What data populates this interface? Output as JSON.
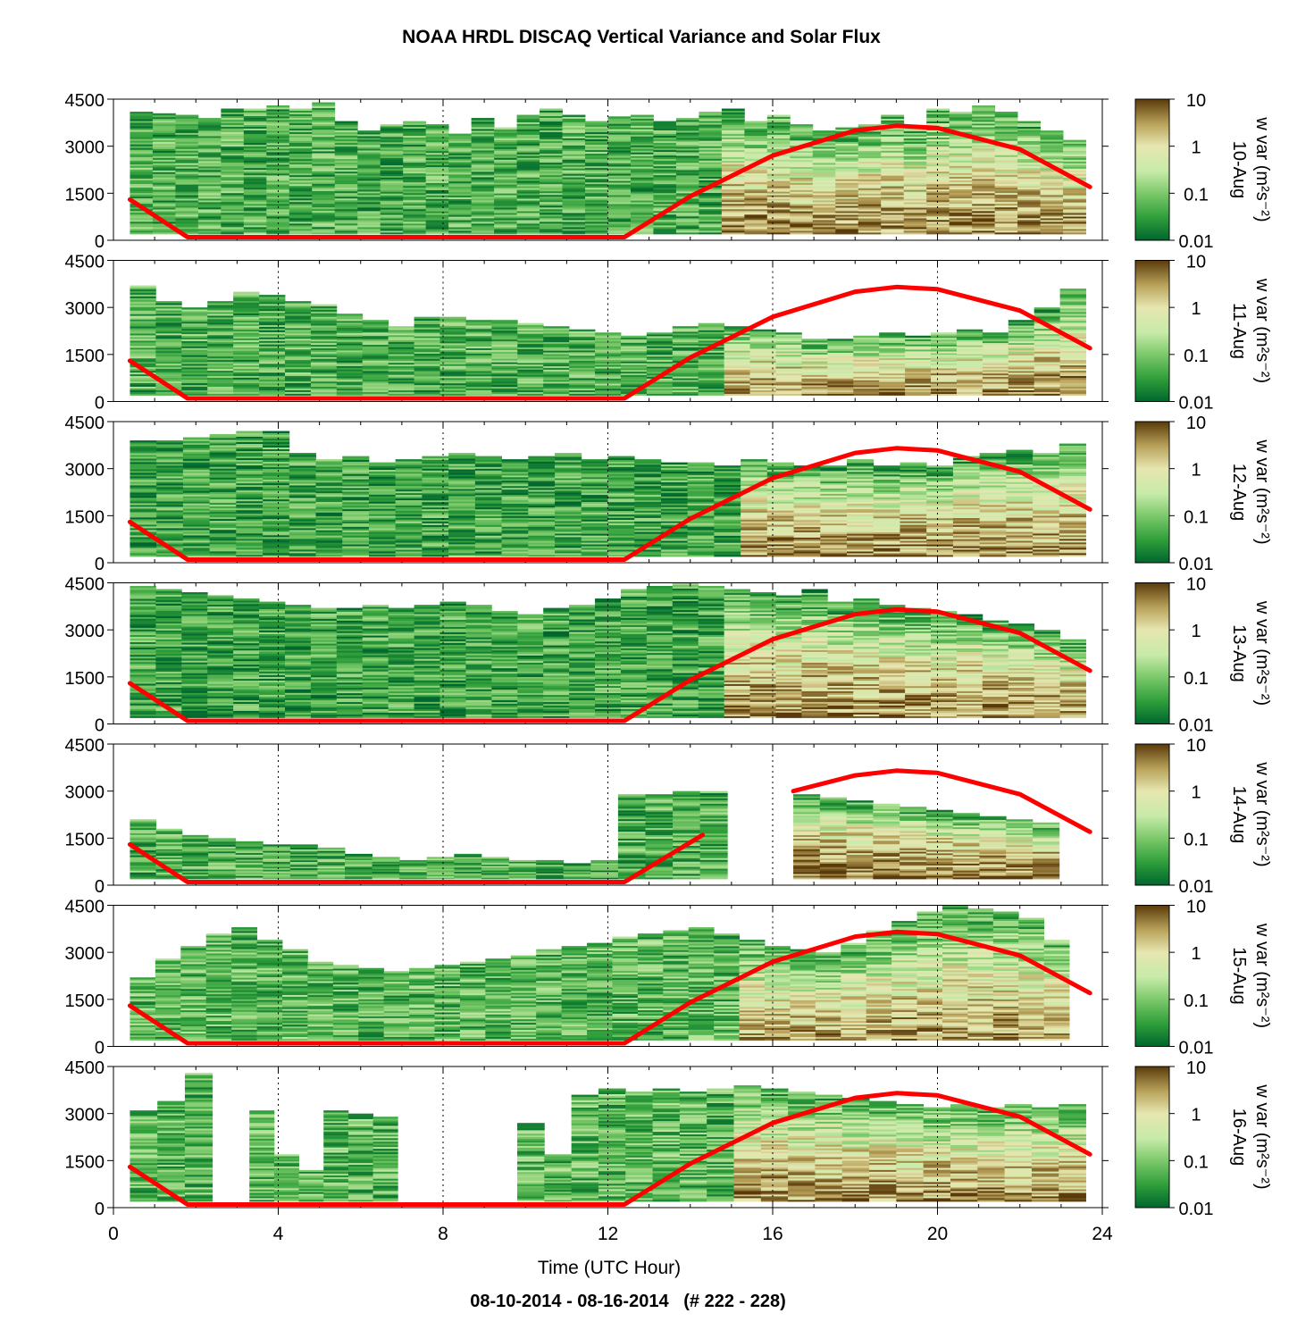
{
  "chart_data": {
    "type": "heatmap",
    "title": "NOAA HRDL DISCAQ Vertical Variance and Solar Flux",
    "subtitle": "08-10-2014 - 08-16-2014   (# 222 - 228)",
    "xlabel": "Time (UTC Hour)",
    "xlim": [
      0,
      24
    ],
    "xticks": [
      0,
      4,
      8,
      12,
      16,
      20,
      24
    ],
    "xtick_labels": [
      "0",
      "4",
      "8",
      "12",
      "16",
      "20",
      "24"
    ],
    "vertical_gridlines": [
      4,
      8,
      12,
      16,
      20,
      24
    ],
    "ylim": [
      0,
      4500
    ],
    "yticks": [
      0,
      1500,
      3000,
      4500
    ],
    "ytick_labels": [
      "0",
      "1500",
      "3000",
      "4500"
    ],
    "colorbar": {
      "label": "w var (m²s⁻²)",
      "scale": "log",
      "range": [
        0.01,
        10
      ],
      "ticks": [
        0.01,
        0.1,
        1,
        10
      ],
      "tick_labels": [
        "0.01",
        "0.1",
        "1",
        "10"
      ],
      "colormap": [
        {
          "value": 0.01,
          "color": "#00662e"
        },
        {
          "value": 0.03,
          "color": "#2e9e3a"
        },
        {
          "value": 0.1,
          "color": "#7cc96a"
        },
        {
          "value": 0.3,
          "color": "#c8ebaa"
        },
        {
          "value": 1,
          "color": "#e6e6b0"
        },
        {
          "value": 3,
          "color": "#b8a25a"
        },
        {
          "value": 10,
          "color": "#5a3a0a"
        }
      ]
    },
    "solar_flux_line_color": "#ff0000",
    "panels": [
      {
        "date": "10-Aug",
        "coverage": [
          [
            0.4,
            23.6
          ]
        ],
        "top": [
          4100,
          4050,
          4000,
          3900,
          4200,
          4200,
          4300,
          4200,
          4400,
          3800,
          3500,
          3700,
          3800,
          3700,
          3400,
          3900,
          3600,
          4000,
          4200,
          4000,
          3800,
          3950,
          4000,
          3800,
          3900,
          4100,
          4200,
          3800,
          4000,
          3700,
          3500,
          3600,
          3700,
          4000,
          3600,
          4200,
          4100,
          4300,
          4100,
          3800,
          3500,
          3200
        ],
        "daytime_max_var": 4.0,
        "night_var": 0.05,
        "solar_flux": [
          [
            0.4,
            1300
          ],
          [
            1.8,
            100
          ],
          [
            12.4,
            100
          ],
          [
            14,
            1400
          ],
          [
            16,
            2700
          ],
          [
            18,
            3500
          ],
          [
            19,
            3650
          ],
          [
            20,
            3580
          ],
          [
            22,
            2900
          ],
          [
            23.7,
            1700
          ]
        ]
      },
      {
        "date": "11-Aug",
        "coverage": [
          [
            0.4,
            23.6
          ]
        ],
        "top": [
          3700,
          3200,
          3000,
          3200,
          3500,
          3400,
          3200,
          3100,
          2800,
          2600,
          2400,
          2700,
          2700,
          2600,
          2600,
          2500,
          2400,
          2300,
          2200,
          2100,
          2200,
          2400,
          2500,
          2400,
          2300,
          2200,
          2000,
          2000,
          2100,
          2200,
          2100,
          2200,
          2300,
          2200,
          2600,
          3000,
          3600
        ],
        "daytime_max_var": 4.0,
        "night_var": 0.05,
        "solar_flux": [
          [
            0.4,
            1300
          ],
          [
            1.8,
            100
          ],
          [
            12.4,
            100
          ],
          [
            14,
            1400
          ],
          [
            16,
            2700
          ],
          [
            18,
            3500
          ],
          [
            19,
            3650
          ],
          [
            20,
            3580
          ],
          [
            22,
            2900
          ],
          [
            23.7,
            1700
          ]
        ]
      },
      {
        "date": "12-Aug",
        "coverage": [
          [
            0.4,
            23.6
          ]
        ],
        "top": [
          3900,
          3900,
          4000,
          4100,
          4200,
          4200,
          3500,
          3300,
          3400,
          3200,
          3300,
          3400,
          3500,
          3400,
          3300,
          3400,
          3500,
          3300,
          3400,
          3300,
          3200,
          3200,
          3100,
          3300,
          3200,
          3100,
          3100,
          3300,
          3100,
          3200,
          3100,
          3400,
          3500,
          3600,
          3500,
          3800
        ],
        "daytime_max_var": 4.0,
        "night_var": 0.04,
        "solar_flux": [
          [
            0.4,
            1300
          ],
          [
            1.8,
            100
          ],
          [
            12.4,
            100
          ],
          [
            14,
            1400
          ],
          [
            16,
            2700
          ],
          [
            18,
            3500
          ],
          [
            19,
            3650
          ],
          [
            20,
            3580
          ],
          [
            22,
            2900
          ],
          [
            23.7,
            1700
          ]
        ]
      },
      {
        "date": "13-Aug",
        "coverage": [
          [
            0.4,
            23.6
          ]
        ],
        "top": [
          4400,
          4300,
          4200,
          4100,
          4000,
          3900,
          3800,
          3700,
          3700,
          3800,
          3700,
          3800,
          3900,
          3800,
          3600,
          3500,
          3700,
          3800,
          4000,
          4300,
          4400,
          4500,
          4400,
          4300,
          4200,
          4100,
          4300,
          3900,
          4000,
          3800,
          3700,
          3600,
          3500,
          3300,
          3200,
          3000,
          2700
        ],
        "daytime_max_var": 4.0,
        "night_var": 0.04,
        "solar_flux": [
          [
            0.4,
            1300
          ],
          [
            1.8,
            100
          ],
          [
            12.4,
            100
          ],
          [
            14,
            1400
          ],
          [
            16,
            2700
          ],
          [
            18,
            3500
          ],
          [
            19,
            3650
          ],
          [
            20,
            3580
          ],
          [
            22,
            2900
          ],
          [
            23.7,
            1700
          ]
        ]
      },
      {
        "date": "14-Aug",
        "coverage": [
          [
            0.4,
            2.3
          ],
          [
            2.3,
            14.9
          ],
          [
            16.5,
            23.6
          ]
        ],
        "top": [
          2100,
          1800,
          1600,
          1500,
          1400,
          1300,
          1300,
          1200,
          1000,
          900,
          800,
          900,
          1000,
          900,
          800,
          800,
          700,
          800,
          2900,
          2900,
          3000,
          3000,
          2900,
          2800,
          2700,
          2600,
          2500,
          2400,
          2300,
          2200,
          2100,
          2000
        ],
        "daytime_max_var": 6.0,
        "night_var": 0.05,
        "solar_flux": [
          [
            0.4,
            1300
          ],
          [
            1.8,
            100
          ],
          [
            12.4,
            100
          ],
          [
            14.3,
            1600
          ],
          [
            16.5,
            3000
          ],
          [
            18,
            3500
          ],
          [
            19,
            3650
          ],
          [
            20,
            3580
          ],
          [
            22,
            2900
          ],
          [
            23.7,
            1700
          ]
        ]
      },
      {
        "date": "15-Aug",
        "coverage": [
          [
            0.4,
            23.2
          ]
        ],
        "top": [
          2200,
          2800,
          3200,
          3600,
          3800,
          3400,
          3100,
          2700,
          2600,
          2500,
          2400,
          2500,
          2600,
          2700,
          2800,
          2900,
          3100,
          3200,
          3300,
          3500,
          3600,
          3700,
          3800,
          3600,
          3400,
          3200,
          3100,
          3000,
          3300,
          3700,
          4000,
          4300,
          4500,
          4400,
          4300,
          4100,
          3400
        ],
        "daytime_max_var": 3.0,
        "night_var": 0.06,
        "solar_flux": [
          [
            0.4,
            1300
          ],
          [
            1.8,
            100
          ],
          [
            12.4,
            100
          ],
          [
            14,
            1400
          ],
          [
            16,
            2700
          ],
          [
            18,
            3500
          ],
          [
            19,
            3650
          ],
          [
            20,
            3580
          ],
          [
            22,
            2900
          ],
          [
            23.7,
            1700
          ]
        ]
      },
      {
        "date": "16-Aug",
        "coverage": [
          [
            0.4,
            2.4
          ],
          [
            3.3,
            6.9
          ],
          [
            9.8,
            23.6
          ]
        ],
        "top": [
          3100,
          3400,
          4300,
          3100,
          1700,
          1200,
          3100,
          3000,
          2900,
          2700,
          1700,
          3600,
          3800,
          3700,
          3800,
          3700,
          3800,
          3900,
          3800,
          3700,
          3600,
          3500,
          3400,
          3300,
          3200,
          3300,
          3200,
          3300,
          3200,
          3300
        ],
        "daytime_max_var": 4.0,
        "night_var": 0.06,
        "solar_flux": [
          [
            0.4,
            1300
          ],
          [
            1.8,
            100
          ],
          [
            12.4,
            100
          ],
          [
            14,
            1400
          ],
          [
            16,
            2700
          ],
          [
            18,
            3500
          ],
          [
            19,
            3650
          ],
          [
            20,
            3580
          ],
          [
            22,
            2900
          ],
          [
            23.7,
            1700
          ]
        ]
      }
    ]
  }
}
